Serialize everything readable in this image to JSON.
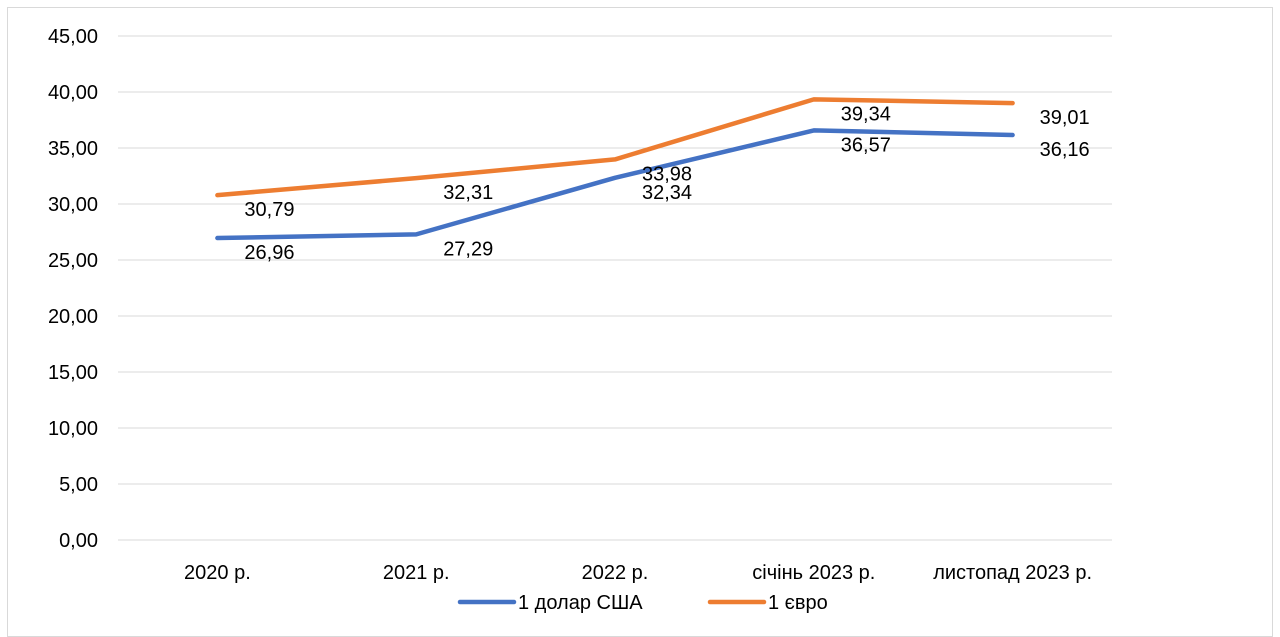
{
  "chart_data": {
    "type": "line",
    "title": "",
    "xlabel": "",
    "ylabel": "",
    "categories": [
      "2020 р.",
      "2021 р.",
      "2022 р.",
      "січінь 2023 р.",
      "листопад 2023 р."
    ],
    "ylim": [
      0,
      45
    ],
    "yticks": [
      0,
      5,
      10,
      15,
      20,
      25,
      30,
      35,
      40,
      45
    ],
    "ytick_labels": [
      "0,00",
      "5,00",
      "10,00",
      "15,00",
      "20,00",
      "25,00",
      "30,00",
      "35,00",
      "40,00",
      "45,00"
    ],
    "grid": true,
    "legend_position": "bottom",
    "series": [
      {
        "name": "1 долар США",
        "color": "#4472c4",
        "values": [
          26.96,
          27.29,
          32.34,
          36.57,
          36.16
        ],
        "value_labels": [
          "26,96",
          "27,29",
          "32,34",
          "36,57",
          "36,16"
        ]
      },
      {
        "name": "1 євро",
        "color": "#ed7d31",
        "values": [
          30.79,
          32.31,
          33.98,
          39.34,
          39.01
        ],
        "value_labels": [
          "30,79",
          "32,31",
          "33,98",
          "39,34",
          "39,01"
        ]
      }
    ]
  }
}
